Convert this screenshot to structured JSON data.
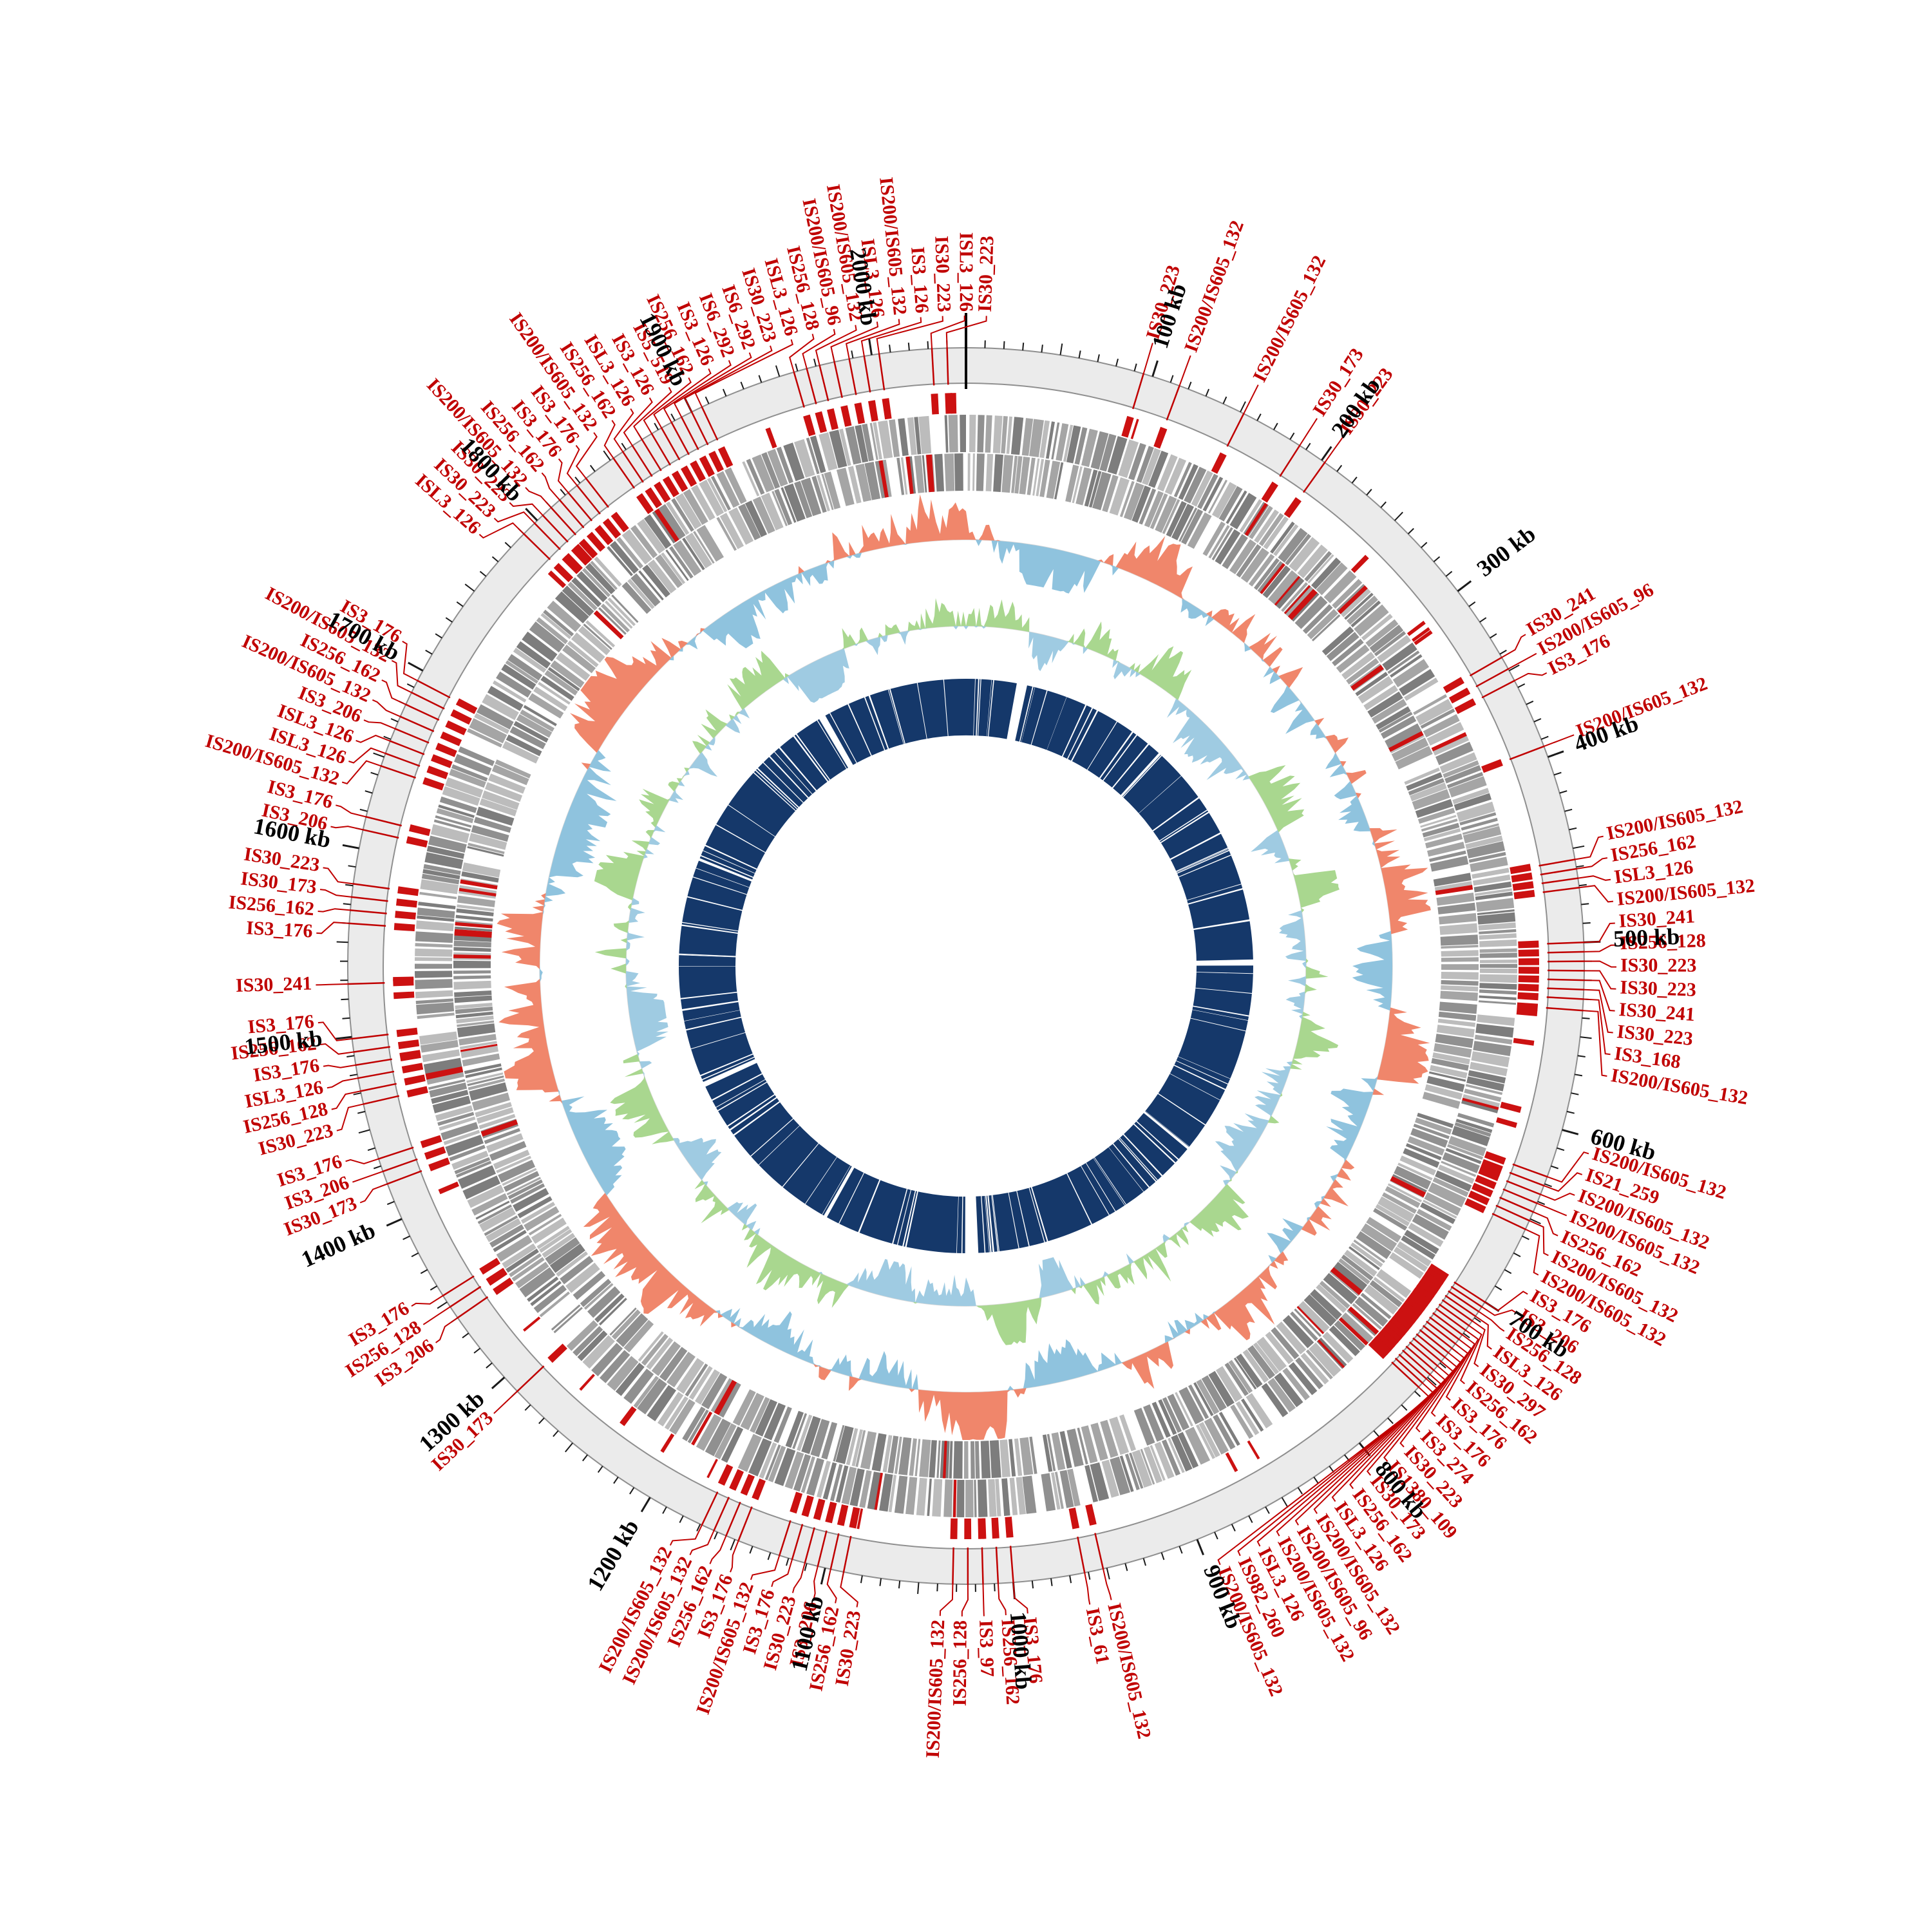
{
  "chart_data": {
    "type": "circos",
    "genome_length_kb": 2050,
    "axis": {
      "unit": "kb",
      "tick_interval_kb": 10,
      "label_interval_kb": 100,
      "tick_labels": [
        "100 kb",
        "200 kb",
        "300 kb",
        "400 kb",
        "500 kb",
        "600 kb",
        "700 kb",
        "800 kb",
        "900 kb",
        "1000 kb",
        "1100 kb",
        "1200 kb",
        "1300 kb",
        "1400 kb",
        "1500 kb",
        "1600 kb",
        "1700 kb",
        "1800 kb",
        "1900 kb",
        "2000 kb"
      ]
    },
    "palette": {
      "label_red": "#c00000",
      "is_mark_red": "#cc1111",
      "tick_black": "#1a1a1a",
      "backbone_fill": "#ebebeb",
      "backbone_stroke": "#8f8f8f",
      "baseline_gray": "#d8d8d8"
    },
    "label_min_gap_kb": 11,
    "tracks": [
      {
        "id": "backbone",
        "type": "ring",
        "r0": 905,
        "r1": 960
      },
      {
        "id": "genes-forward",
        "type": "tile",
        "r0": 798,
        "r1": 856,
        "seed": 11,
        "min_len_kb": 1.2,
        "var_len_kb": 5,
        "colors": [
          "#909090",
          "#a5a5a5",
          "#bcbcbc",
          "#7d7d7d"
        ]
      },
      {
        "id": "genes-reverse",
        "type": "tile",
        "r0": 738,
        "r1": 796,
        "seed": 12,
        "min_len_kb": 1.2,
        "var_len_kb": 5,
        "colors": [
          "#909090",
          "#a5a5a5",
          "#bcbcbc",
          "#7d7d7d"
        ]
      },
      {
        "id": "gc-content",
        "type": "area",
        "baseline": 662,
        "amp_out": 74,
        "amp_in": 62,
        "bins": 840,
        "seed": 21,
        "pos_color": "#f0866b",
        "neg_color": "#8fc3de"
      },
      {
        "id": "gc-skew",
        "type": "area",
        "baseline": 528,
        "amp_out": 64,
        "amp_in": 56,
        "bins": 840,
        "seed": 22,
        "pos_color": "#a9d78f",
        "neg_color": "#9fcbe2"
      },
      {
        "id": "alignment-blocks",
        "type": "block-ring",
        "r0": 358,
        "r1": 446,
        "seed": 31,
        "color": "#15386a",
        "thin_gaps": 130,
        "wide_gaps_kb": [
          [
            58,
            12
          ],
          [
            240,
            3
          ],
          [
            505,
            7
          ],
          [
            735,
            3
          ],
          [
            1012,
            14
          ],
          [
            1190,
            4
          ],
          [
            1396,
            6
          ],
          [
            1660,
            3
          ],
          [
            1875,
            8
          ]
        ]
      }
    ],
    "extra_marks": {
      "seed": 13,
      "count": 70
    },
    "is_element_labels": [
      {
        "name": "IS30_223",
        "kb": 95
      },
      {
        "name": "IS200/IS605_132",
        "kb": 115
      },
      {
        "name": "IS200/IS605_132",
        "kb": 152
      },
      {
        "name": "IS30_173",
        "kb": 186
      },
      {
        "name": "IS30_223",
        "kb": 202
      },
      {
        "name": "IS30_241",
        "kb": 342
      },
      {
        "name": "IS200/IS605_96",
        "kb": 349
      },
      {
        "name": "IS3_176",
        "kb": 356
      },
      {
        "name": "IS200/IS605_132",
        "kb": 394
      },
      {
        "name": "IS200/IS605_132",
        "kb": 456
      },
      {
        "name": "IS256_162",
        "kb": 461
      },
      {
        "name": "ISL3_126",
        "kb": 466
      },
      {
        "name": "IS200/IS605_132",
        "kb": 471
      },
      {
        "name": "IS30_241",
        "kb": 500
      },
      {
        "name": "IS256_128",
        "kb": 505
      },
      {
        "name": "IS30_223",
        "kb": 510
      },
      {
        "name": "IS30_223",
        "kb": 515
      },
      {
        "name": "IS30_241",
        "kb": 520
      },
      {
        "name": "IS30_223",
        "kb": 525
      },
      {
        "name": "IS3_168",
        "kb": 530
      },
      {
        "name": "IS200/IS605_132",
        "kb": 536
      },
      {
        "name": "IS200/IS605_132",
        "kb": 626
      },
      {
        "name": "IS21_259",
        "kb": 631
      },
      {
        "name": "IS200/IS605_132",
        "kb": 636
      },
      {
        "name": "IS200/IS605_132",
        "kb": 641
      },
      {
        "name": "IS256_162",
        "kb": 646
      },
      {
        "name": "IS200/IS605_132",
        "kb": 651
      },
      {
        "name": "IS200/IS605_132",
        "kb": 656
      },
      {
        "name": "IS3_176",
        "kb": 700
      },
      {
        "name": "IS3_206",
        "kb": 703
      },
      {
        "name": "IS256_128",
        "kb": 706
      },
      {
        "name": "ISL3_126",
        "kb": 709
      },
      {
        "name": "IS30_297",
        "kb": 712
      },
      {
        "name": "IS256_162",
        "kb": 715
      },
      {
        "name": "IS3_176",
        "kb": 718
      },
      {
        "name": "IS3_176",
        "kb": 721
      },
      {
        "name": "IS3_274",
        "kb": 724
      },
      {
        "name": "IS30_223",
        "kb": 727
      },
      {
        "name": "IS1380_109",
        "kb": 730
      },
      {
        "name": "IS30_173",
        "kb": 733
      },
      {
        "name": "IS256_162",
        "kb": 736
      },
      {
        "name": "ISL3_126",
        "kb": 739
      },
      {
        "name": "IS200/IS605_132",
        "kb": 742
      },
      {
        "name": "IS200/IS605_96",
        "kb": 745
      },
      {
        "name": "IS200/IS605_132",
        "kb": 748
      },
      {
        "name": "ISL3_126",
        "kb": 751
      },
      {
        "name": "IS982_260",
        "kb": 754
      },
      {
        "name": "IS200/IS605_132",
        "kb": 757
      },
      {
        "name": "IS200/IS605_132",
        "kb": 952
      },
      {
        "name": "IS3_61",
        "kb": 962
      },
      {
        "name": "IS3_176",
        "kb": 1000
      },
      {
        "name": "IS256_162",
        "kb": 1008
      },
      {
        "name": "IS3_97",
        "kb": 1016
      },
      {
        "name": "IS256_128",
        "kb": 1024
      },
      {
        "name": "IS200/IS605_132",
        "kb": 1032
      },
      {
        "name": "IS30_223",
        "kb": 1090
      },
      {
        "name": "IS256_162",
        "kb": 1097
      },
      {
        "name": "IS3_206",
        "kb": 1104
      },
      {
        "name": "IS30_223",
        "kb": 1111
      },
      {
        "name": "IS3_176",
        "kb": 1118
      },
      {
        "name": "IS200/IS605_132",
        "kb": 1125
      },
      {
        "name": "IS3_176",
        "kb": 1148
      },
      {
        "name": "IS256_162",
        "kb": 1155
      },
      {
        "name": "IS200/IS605_132",
        "kb": 1162
      },
      {
        "name": "IS200/IS605_132",
        "kb": 1169
      },
      {
        "name": "IS30_173",
        "kb": 1290
      },
      {
        "name": "IS3_206",
        "kb": 1340
      },
      {
        "name": "IS256_128",
        "kb": 1347
      },
      {
        "name": "IS3_176",
        "kb": 1354
      },
      {
        "name": "IS30_173",
        "kb": 1420
      },
      {
        "name": "IS3_206",
        "kb": 1427
      },
      {
        "name": "IS3_176",
        "kb": 1434
      },
      {
        "name": "IS30_223",
        "kb": 1464
      },
      {
        "name": "IS256_128",
        "kb": 1471
      },
      {
        "name": "ISL3_126",
        "kb": 1478
      },
      {
        "name": "IS3_176",
        "kb": 1485
      },
      {
        "name": "IS256_162",
        "kb": 1492
      },
      {
        "name": "IS3_176",
        "kb": 1499
      },
      {
        "name": "IS30_241",
        "kb": 1528
      },
      {
        "name": "IS3_176",
        "kb": 1560
      },
      {
        "name": "IS256_162",
        "kb": 1567
      },
      {
        "name": "IS30_173",
        "kb": 1574
      },
      {
        "name": "IS30_223",
        "kb": 1581
      },
      {
        "name": "IS3_206",
        "kb": 1610
      },
      {
        "name": "IS3_176",
        "kb": 1617
      },
      {
        "name": "IS200/IS605_132",
        "kb": 1645
      },
      {
        "name": "ISL3_126",
        "kb": 1652
      },
      {
        "name": "ISL3_126",
        "kb": 1659
      },
      {
        "name": "IS3_206",
        "kb": 1666
      },
      {
        "name": "IS200/IS605_132",
        "kb": 1673
      },
      {
        "name": "IS256_162",
        "kb": 1680
      },
      {
        "name": "IS200/IS605_132",
        "kb": 1687
      },
      {
        "name": "IS3_176",
        "kb": 1694
      },
      {
        "name": "ISL3_126",
        "kb": 1790
      },
      {
        "name": "IS30_223",
        "kb": 1798
      },
      {
        "name": "IS30_223",
        "kb": 1804
      },
      {
        "name": "IS200/IS605_132",
        "kb": 1810
      },
      {
        "name": "IS256_162",
        "kb": 1816
      },
      {
        "name": "IS3_176",
        "kb": 1822
      },
      {
        "name": "IS3_176",
        "kb": 1828
      },
      {
        "name": "IS200/IS605_132",
        "kb": 1834
      },
      {
        "name": "IS256_162",
        "kb": 1852
      },
      {
        "name": "ISL3_126",
        "kb": 1858
      },
      {
        "name": "IS3_126",
        "kb": 1864
      },
      {
        "name": "IS5_519",
        "kb": 1870
      },
      {
        "name": "IS256_162",
        "kb": 1876
      },
      {
        "name": "IS3_126",
        "kb": 1882
      },
      {
        "name": "IS6_292",
        "kb": 1888
      },
      {
        "name": "IS6_292",
        "kb": 1894
      },
      {
        "name": "IS30_223",
        "kb": 1900
      },
      {
        "name": "ISL3_126",
        "kb": 1906
      },
      {
        "name": "IS256_128",
        "kb": 1958
      },
      {
        "name": "IS200/IS605_96",
        "kb": 1965
      },
      {
        "name": "IS200/IS605_132",
        "kb": 1972
      },
      {
        "name": "ISL3_126",
        "kb": 1980
      },
      {
        "name": "IS200/IS605_132",
        "kb": 1988
      },
      {
        "name": "IS3_126",
        "kb": 1996
      },
      {
        "name": "IS30_223",
        "kb": 2004
      },
      {
        "name": "ISL3_126",
        "kb": 2032
      },
      {
        "name": "IS30_223",
        "kb": 2040
      }
    ]
  }
}
